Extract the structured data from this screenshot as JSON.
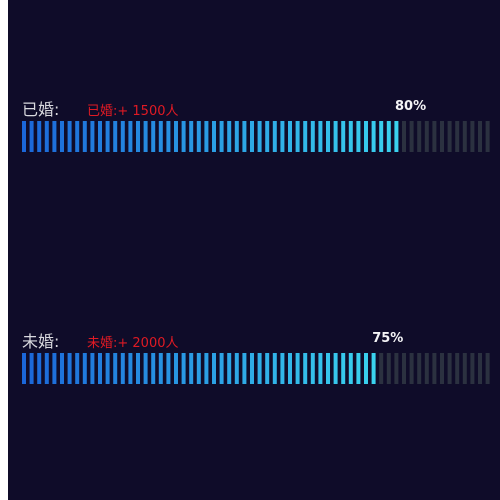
{
  "colors": {
    "background": "#0f0c29",
    "fill_start": "#1b67d9",
    "fill_end": "#3ad2ee",
    "track": "#2b3140",
    "label": "#d9d9de",
    "note": "#e01a24",
    "percent": "#f4f4f6"
  },
  "chart_data": {
    "type": "bar",
    "orientation": "horizontal",
    "style": "segmented-progress",
    "xlim": [
      0,
      100
    ],
    "series": [
      {
        "label": "已婚:",
        "note": "已婚:+ 1500人",
        "count": 1500,
        "percent": 80,
        "percent_label": "80%"
      },
      {
        "label": "未婚:",
        "note": "未婚:+ 2000人",
        "count": 2000,
        "percent": 75,
        "percent_label": "75%"
      }
    ]
  }
}
